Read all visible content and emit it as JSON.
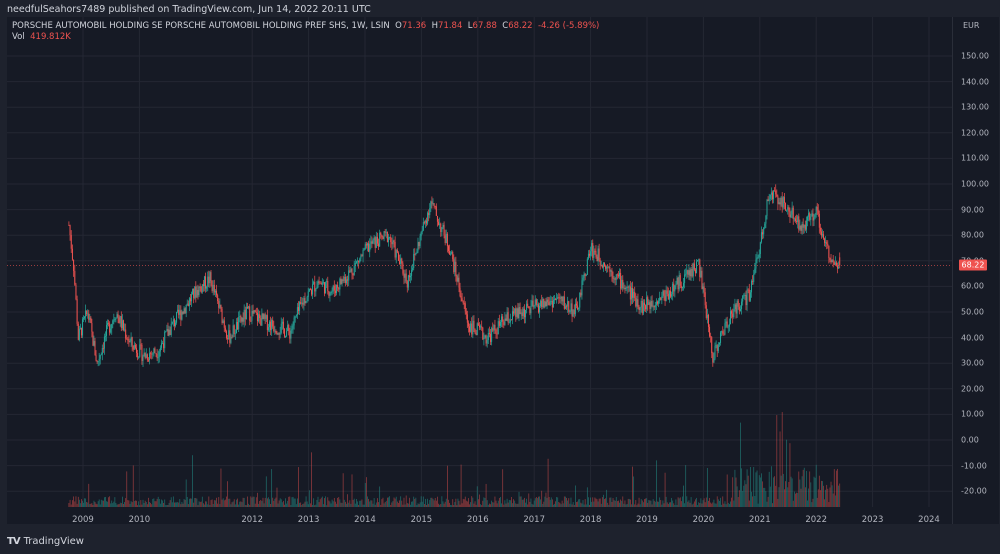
{
  "publisher": "needfulSeahors7489 published on TradingView.com, Jun 14, 2022 20:11 UTC",
  "legend": {
    "symbol": "PORSCHE AUTOMOBIL HOLDING SE PORSCHE AUTOMOBIL HOLDING PREF SHS, 1W, LSIN",
    "open_label": "O",
    "open": "71.36",
    "high_label": "H",
    "high": "71.84",
    "low_label": "L",
    "low": "67.88",
    "close_label": "C",
    "close": "68.22",
    "change": "-4.26 (-5.89%)",
    "vol_label": "Vol",
    "vol": "419.812K"
  },
  "axis": {
    "currency": "EUR",
    "last_price": "68.22",
    "y_ticks": [
      "150.00",
      "140.00",
      "130.00",
      "120.00",
      "110.00",
      "100.00",
      "90.00",
      "80.00",
      "70.00",
      "60.00",
      "50.00",
      "40.00",
      "30.00",
      "20.00",
      "10.00",
      "0.00",
      "-10.00",
      "-20.00"
    ],
    "x_ticks": [
      "2009",
      "2010",
      "2012",
      "2013",
      "2014",
      "2015",
      "2016",
      "2017",
      "2018",
      "2019",
      "2020",
      "2021",
      "2022",
      "2023",
      "2024"
    ]
  },
  "footer": {
    "brand": "TradingView",
    "logo": "TV"
  },
  "colors": {
    "up": "#26a69a",
    "down": "#ef5350",
    "background": "#161a25",
    "grid": "#242733",
    "price_line": "#ef5350"
  },
  "chart_data": {
    "type": "candlestick",
    "title": "PORSCHE AUTOMOBIL HOLDING SE PORSCHE AUTOMOBIL HOLDING PREF SHS, 1W, LSIN",
    "ylabel": "EUR",
    "ylim": [
      -25,
      158
    ],
    "x_range": [
      "2008-09",
      "2024-09"
    ],
    "last": {
      "open": 71.36,
      "high": 71.84,
      "low": 67.88,
      "close": 68.22,
      "change": -4.26,
      "change_pct": -5.89,
      "volume": "419.812K"
    },
    "approx_path": [
      {
        "date": "2008-10",
        "price": 84
      },
      {
        "date": "2008-11",
        "price": 68
      },
      {
        "date": "2008-12",
        "price": 40
      },
      {
        "date": "2009-02",
        "price": 50
      },
      {
        "date": "2009-04",
        "price": 30
      },
      {
        "date": "2009-06",
        "price": 42
      },
      {
        "date": "2009-08",
        "price": 50
      },
      {
        "date": "2009-11",
        "price": 38
      },
      {
        "date": "2010-02",
        "price": 33
      },
      {
        "date": "2010-05",
        "price": 35
      },
      {
        "date": "2010-08",
        "price": 45
      },
      {
        "date": "2011-01",
        "price": 58
      },
      {
        "date": "2011-04",
        "price": 63
      },
      {
        "date": "2011-08",
        "price": 40
      },
      {
        "date": "2011-12",
        "price": 50
      },
      {
        "date": "2012-04",
        "price": 46
      },
      {
        "date": "2012-09",
        "price": 42
      },
      {
        "date": "2012-12",
        "price": 55
      },
      {
        "date": "2013-03",
        "price": 62
      },
      {
        "date": "2013-06",
        "price": 58
      },
      {
        "date": "2013-10",
        "price": 66
      },
      {
        "date": "2014-02",
        "price": 76
      },
      {
        "date": "2014-06",
        "price": 80
      },
      {
        "date": "2014-10",
        "price": 62
      },
      {
        "date": "2015-03",
        "price": 93
      },
      {
        "date": "2015-07",
        "price": 75
      },
      {
        "date": "2015-09",
        "price": 60
      },
      {
        "date": "2015-11",
        "price": 45
      },
      {
        "date": "2016-03",
        "price": 40
      },
      {
        "date": "2016-07",
        "price": 47
      },
      {
        "date": "2017-01",
        "price": 52
      },
      {
        "date": "2017-06",
        "price": 55
      },
      {
        "date": "2017-10",
        "price": 50
      },
      {
        "date": "2018-01",
        "price": 75
      },
      {
        "date": "2018-06",
        "price": 65
      },
      {
        "date": "2018-12",
        "price": 52
      },
      {
        "date": "2019-06",
        "price": 58
      },
      {
        "date": "2019-12",
        "price": 69
      },
      {
        "date": "2020-03",
        "price": 33
      },
      {
        "date": "2020-07",
        "price": 50
      },
      {
        "date": "2020-11",
        "price": 57
      },
      {
        "date": "2021-03",
        "price": 96
      },
      {
        "date": "2021-06",
        "price": 93
      },
      {
        "date": "2021-10",
        "price": 82
      },
      {
        "date": "2022-01",
        "price": 90
      },
      {
        "date": "2022-03",
        "price": 75
      },
      {
        "date": "2022-06",
        "price": 68.22
      }
    ],
    "volume_axis_note": "Volume histogram overlaid at bottom; spikes largest in 2021"
  }
}
